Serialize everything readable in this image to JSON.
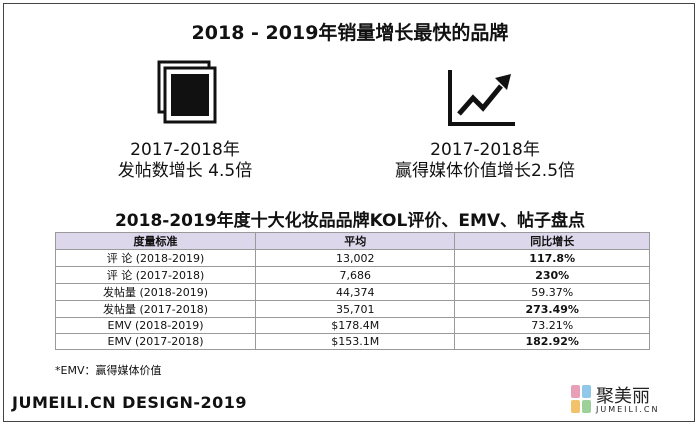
{
  "title": "2018 - 2019年销量增长最快的品牌",
  "stats": [
    {
      "icon": "photo-stack-icon",
      "line1": "2017-2018年",
      "line2": "发帖数增长 4.5倍"
    },
    {
      "icon": "growth-chart-icon",
      "line1": "2017-2018年",
      "line2": "赢得媒体价值增长2.5倍"
    }
  ],
  "table": {
    "title": "2018-2019年度十大化妆品品牌KOL评价、EMV、帖子盘点",
    "headers": [
      "度量标准",
      "平均",
      "同比增长"
    ],
    "rows": [
      {
        "metric": "评 论 (2018-2019)",
        "avg": "13,002",
        "yoy": "117.8%",
        "bold": true
      },
      {
        "metric": "评 论 (2017-2018)",
        "avg": "7,686",
        "yoy": "230%",
        "bold": true
      },
      {
        "metric": "发帖量  (2018-2019)",
        "avg": "44,374",
        "yoy": "59.37%",
        "bold": false
      },
      {
        "metric": "发帖量  (2017-2018)",
        "avg": "35,701",
        "yoy": "273.49%",
        "bold": true
      },
      {
        "metric": "EMV (2018-2019)",
        "avg": "$178.4M",
        "yoy": "73.21%",
        "bold": false
      },
      {
        "metric": "EMV (2017-2018)",
        "avg": "$153.1M",
        "yoy": "182.92%",
        "bold": true
      }
    ]
  },
  "footnote": "*EMV：赢得媒体价值",
  "footer": "JUMEILI.CN DESIGN-2019",
  "logo": {
    "name": "聚美丽",
    "sub": "JUMEILI.CN",
    "icon": "jumeili-logo-icon",
    "colors": [
      "#e8a0b8",
      "#8fc8e8",
      "#f2c36b",
      "#9ed09a"
    ]
  }
}
